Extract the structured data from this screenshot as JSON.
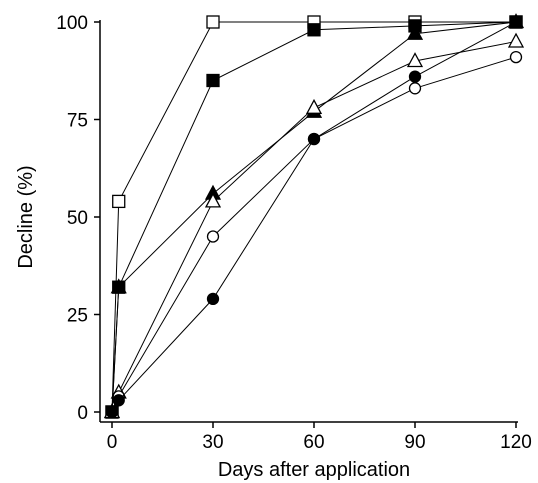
{
  "chart_data": {
    "type": "line",
    "title": "",
    "xlabel": "Days after application",
    "ylabel": "Decline (%)",
    "xlim": [
      0,
      120
    ],
    "ylim": [
      0,
      100
    ],
    "x_ticks": [
      0,
      30,
      60,
      90,
      120
    ],
    "y_ticks": [
      0,
      25,
      50,
      75,
      100
    ],
    "grid": false,
    "legend": "none",
    "colors": {
      "line": "#000000",
      "filled_marker": "#000000",
      "open_marker": "#ffffff"
    },
    "series": [
      {
        "marker": "open-square",
        "points": [
          [
            0,
            0
          ],
          [
            2,
            54
          ],
          [
            30,
            100
          ],
          [
            60,
            100
          ],
          [
            90,
            100
          ],
          [
            120,
            100
          ]
        ]
      },
      {
        "marker": "filled-square",
        "points": [
          [
            0,
            0
          ],
          [
            2,
            32
          ],
          [
            30,
            85
          ],
          [
            60,
            98
          ],
          [
            90,
            99
          ],
          [
            120,
            100
          ]
        ]
      },
      {
        "marker": "filled-triangle",
        "points": [
          [
            0,
            0
          ],
          [
            2,
            32
          ],
          [
            30,
            56
          ],
          [
            60,
            77
          ],
          [
            90,
            97
          ],
          [
            120,
            100
          ]
        ]
      },
      {
        "marker": "open-triangle",
        "points": [
          [
            0,
            0
          ],
          [
            2,
            5
          ],
          [
            30,
            54
          ],
          [
            60,
            78
          ],
          [
            90,
            90
          ],
          [
            120,
            95
          ]
        ]
      },
      {
        "marker": "open-circle",
        "points": [
          [
            0,
            0
          ],
          [
            2,
            4
          ],
          [
            30,
            45
          ],
          [
            60,
            70
          ],
          [
            90,
            83
          ],
          [
            120,
            91
          ]
        ]
      },
      {
        "marker": "filled-circle",
        "points": [
          [
            0,
            0
          ],
          [
            2,
            3
          ],
          [
            30,
            29
          ],
          [
            60,
            70
          ],
          [
            90,
            86
          ],
          [
            120,
            100
          ]
        ]
      }
    ]
  }
}
